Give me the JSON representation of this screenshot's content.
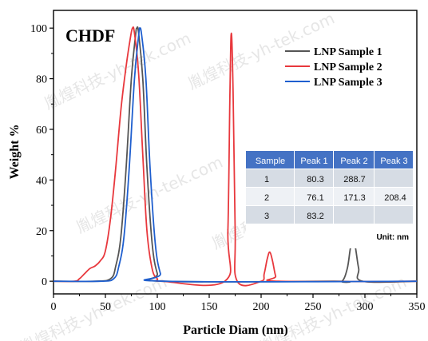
{
  "chart_data": {
    "type": "line",
    "title": "CHDF",
    "xlabel": "Particle Diam (nm)",
    "ylabel": "Weight %",
    "xlim": [
      0,
      350
    ],
    "ylim": [
      -5,
      107
    ],
    "x_ticks": [
      0,
      50,
      100,
      150,
      200,
      250,
      300,
      350
    ],
    "y_ticks": [
      0,
      20,
      40,
      60,
      80,
      100
    ],
    "grid": false,
    "legend_position": "top-right",
    "series": [
      {
        "name": "LNP Sample 1",
        "color": "#555555",
        "points": [
          [
            0,
            0
          ],
          [
            40,
            0
          ],
          [
            55,
            1
          ],
          [
            60,
            6
          ],
          [
            65,
            18
          ],
          [
            70,
            45
          ],
          [
            75,
            80
          ],
          [
            79,
            97
          ],
          [
            80.3,
            100
          ],
          [
            82,
            98
          ],
          [
            86,
            80
          ],
          [
            90,
            45
          ],
          [
            95,
            15
          ],
          [
            100,
            3
          ],
          [
            105,
            0
          ],
          [
            270,
            0
          ],
          [
            278,
            0
          ],
          [
            283,
            5
          ],
          [
            286,
            13
          ],
          [
            288.7,
            16.5
          ],
          [
            291,
            13
          ],
          [
            294,
            5
          ],
          [
            298,
            0
          ],
          [
            350,
            0
          ]
        ]
      },
      {
        "name": "LNP Sample 2",
        "color": "#e8383d",
        "points": [
          [
            0,
            0
          ],
          [
            20,
            0
          ],
          [
            25,
            1
          ],
          [
            30,
            3
          ],
          [
            35,
            5
          ],
          [
            40,
            6
          ],
          [
            45,
            8
          ],
          [
            50,
            12
          ],
          [
            55,
            25
          ],
          [
            60,
            45
          ],
          [
            65,
            68
          ],
          [
            70,
            85
          ],
          [
            74,
            96
          ],
          [
            76.1,
            100
          ],
          [
            78,
            98
          ],
          [
            82,
            82
          ],
          [
            86,
            50
          ],
          [
            90,
            20
          ],
          [
            95,
            5
          ],
          [
            100,
            1
          ],
          [
            105,
            0
          ],
          [
            165,
            0
          ],
          [
            168,
            20
          ],
          [
            170,
            75
          ],
          [
            171.3,
            98
          ],
          [
            173,
            75
          ],
          [
            175,
            20
          ],
          [
            177,
            0
          ],
          [
            200,
            0
          ],
          [
            203,
            3
          ],
          [
            206,
            9
          ],
          [
            208.4,
            11.5
          ],
          [
            211,
            8
          ],
          [
            214,
            2
          ],
          [
            217,
            0
          ],
          [
            350,
            0
          ]
        ]
      },
      {
        "name": "LNP Sample 3",
        "color": "#1f5fcf",
        "points": [
          [
            0,
            0
          ],
          [
            45,
            0
          ],
          [
            58,
            1
          ],
          [
            63,
            6
          ],
          [
            68,
            18
          ],
          [
            73,
            45
          ],
          [
            78,
            80
          ],
          [
            82,
            97
          ],
          [
            83.2,
            100
          ],
          [
            85,
            97
          ],
          [
            89,
            80
          ],
          [
            93,
            45
          ],
          [
            98,
            15
          ],
          [
            103,
            3
          ],
          [
            108,
            0
          ],
          [
            350,
            0
          ]
        ]
      }
    ]
  },
  "watermark": "胤煌科技-yh-tek.com",
  "table": {
    "headers": [
      "Sample",
      "Peak 1",
      "Peak 2",
      "Peak 3"
    ],
    "rows": [
      [
        "1",
        "80.3",
        "288.7",
        ""
      ],
      [
        "2",
        "76.1",
        "171.3",
        "208.4"
      ],
      [
        "3",
        "83.2",
        "",
        ""
      ]
    ],
    "unit": "Unit: nm",
    "header_color": "#4472c4",
    "row_colors": [
      "#d6dce4",
      "#eef1f5"
    ]
  }
}
